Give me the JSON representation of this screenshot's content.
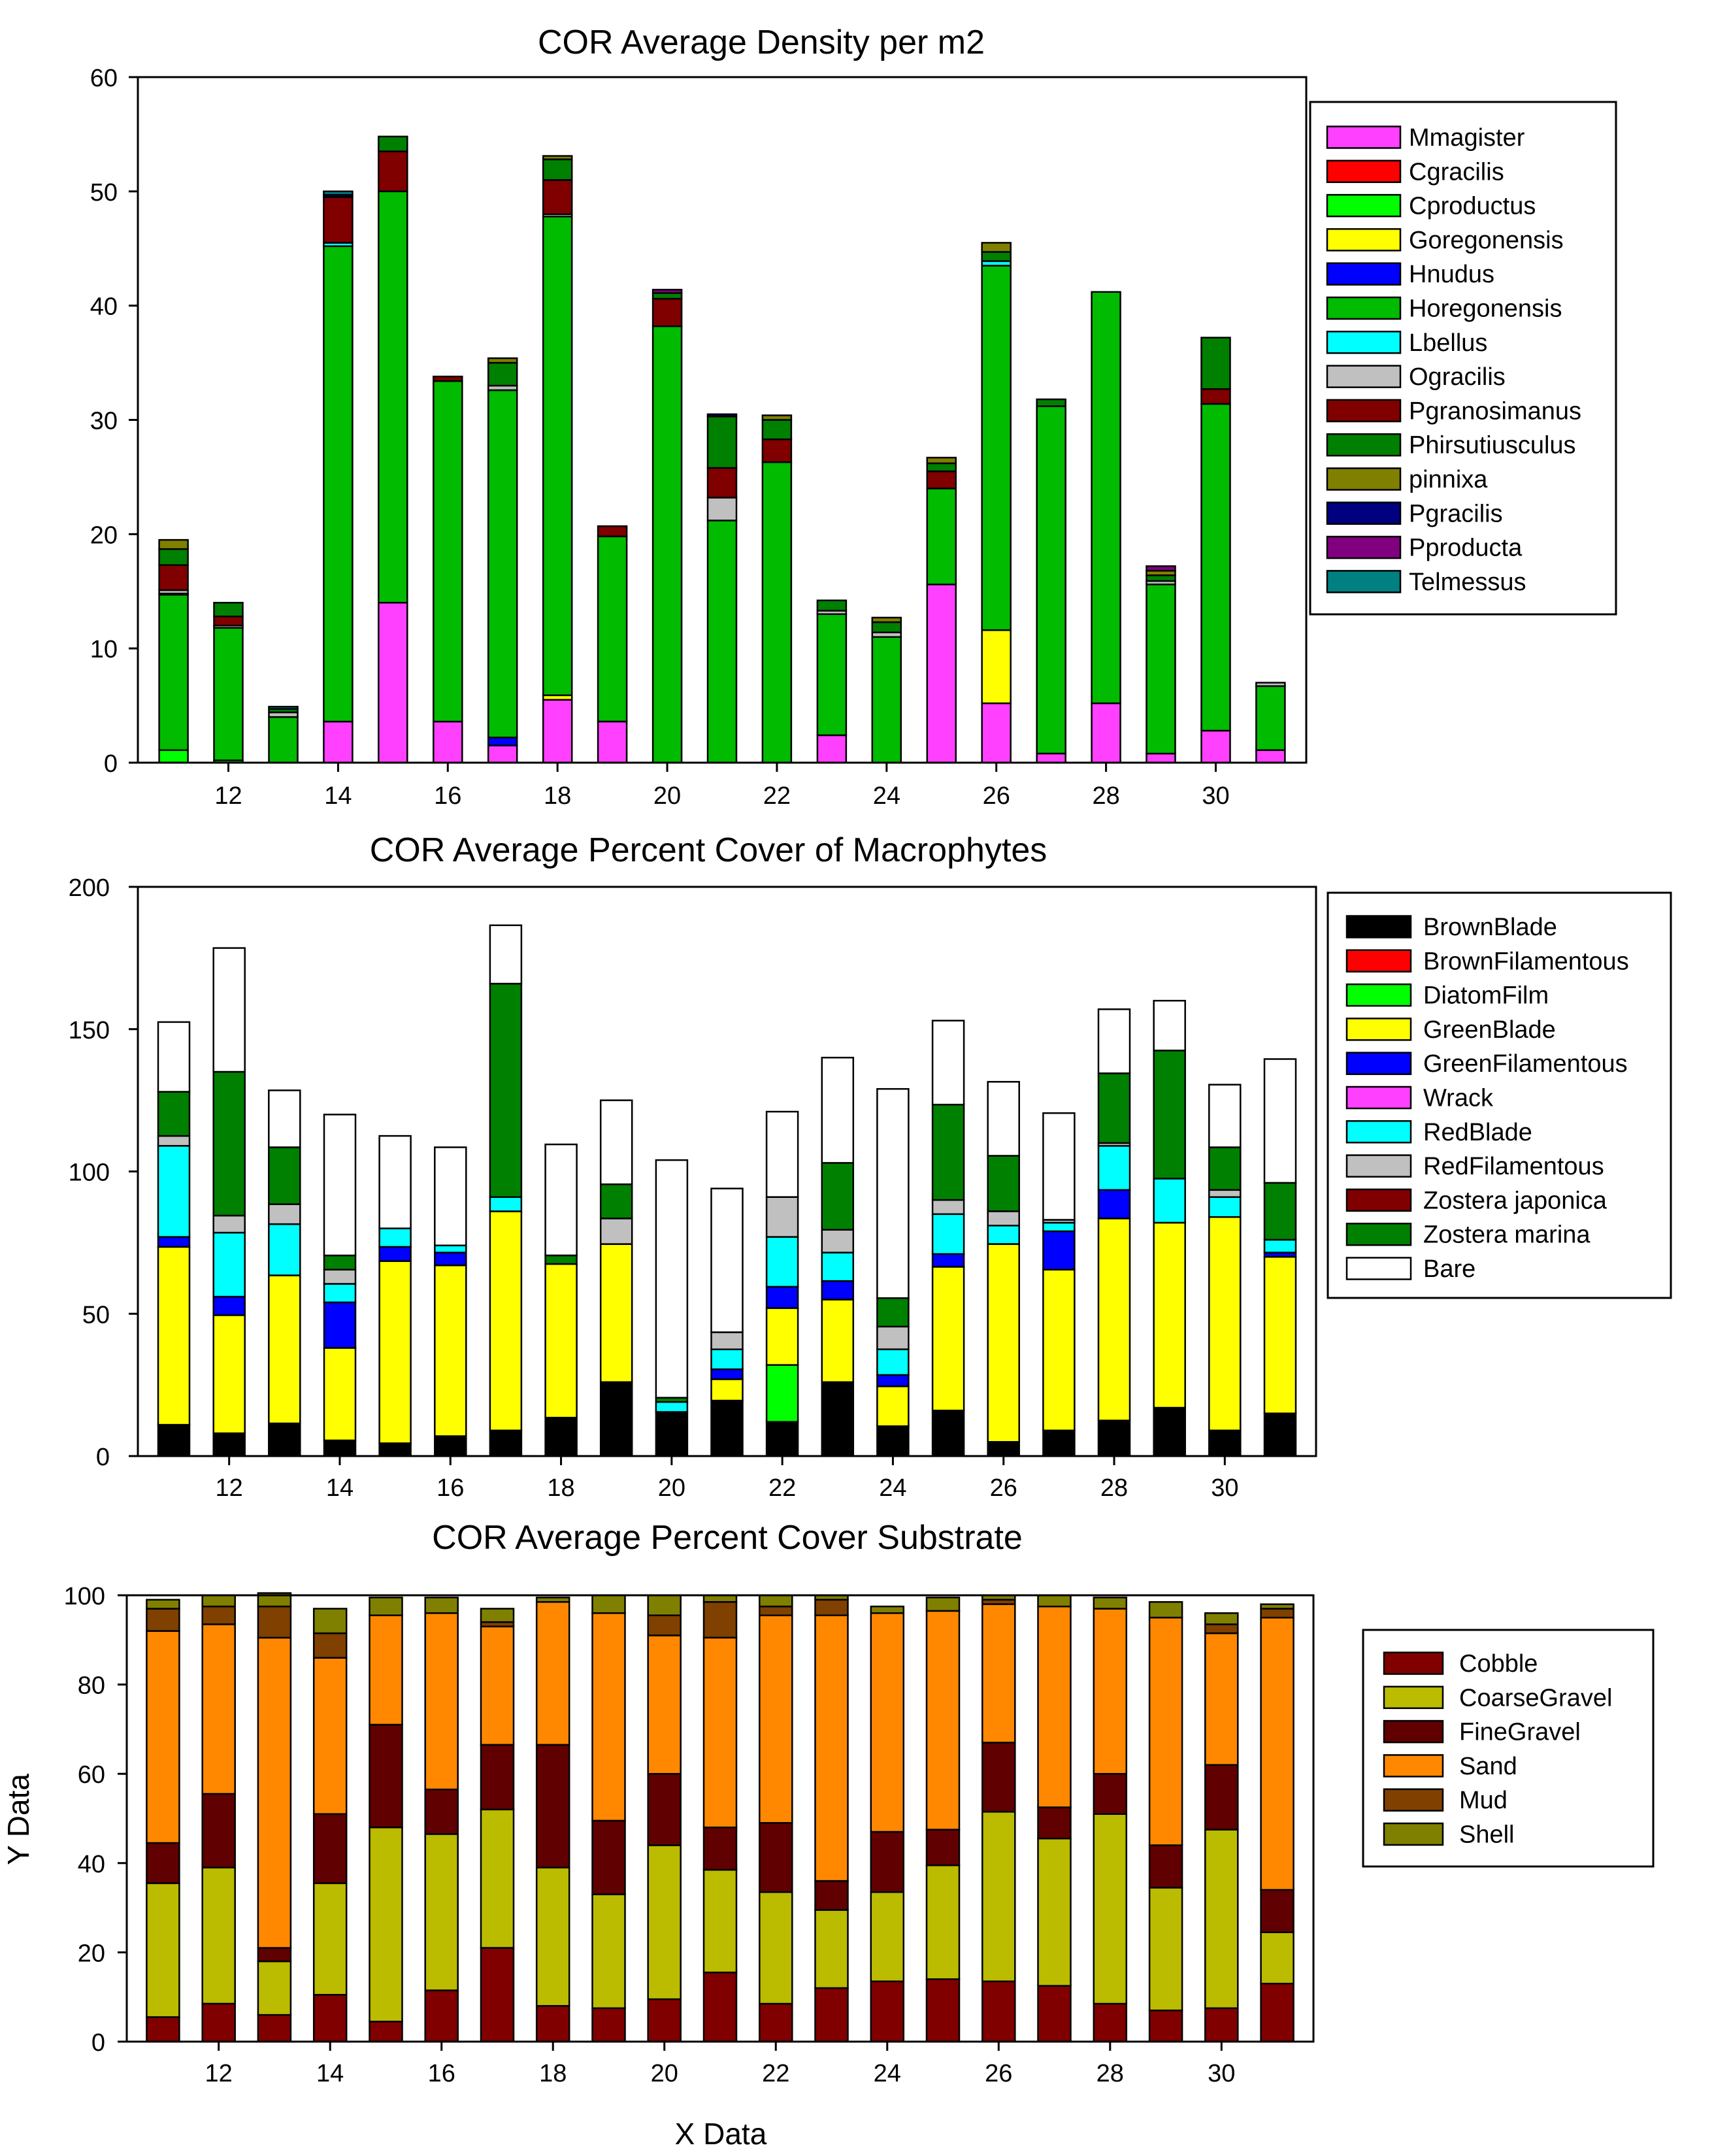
{
  "chart_data": [
    {
      "type": "bar",
      "stacked": true,
      "title": "COR Average Density per m2",
      "xlabel": "",
      "ylabel": "",
      "x": [
        11,
        12,
        13,
        14,
        15,
        16,
        17,
        18,
        19,
        20,
        21,
        22,
        23,
        24,
        25,
        26,
        27,
        28,
        29,
        30,
        31
      ],
      "xticks": [
        12,
        14,
        16,
        18,
        20,
        22,
        24,
        26,
        28,
        30
      ],
      "xlim": [
        10.35,
        31.65
      ],
      "ylim": [
        0,
        60
      ],
      "yticks": [
        0,
        10,
        20,
        30,
        40,
        50,
        60
      ],
      "legend_position": "right",
      "series": [
        {
          "name": "Mmagister",
          "color": "#FF40FF",
          "values": [
            0,
            0,
            0,
            3.6,
            14,
            3.6,
            1.5,
            5.5,
            3.6,
            0,
            0,
            0,
            2.4,
            0,
            15.6,
            5.2,
            0.8,
            5.2,
            0.8,
            2.8,
            1.1
          ]
        },
        {
          "name": "Cgracilis",
          "color": "#FF0000",
          "values": [
            0,
            0,
            0,
            0,
            0,
            0,
            0,
            0,
            0,
            0,
            0,
            0,
            0,
            0,
            0,
            0,
            0,
            0,
            0,
            0,
            0
          ]
        },
        {
          "name": "Cproductus",
          "color": "#00FF00",
          "values": [
            1.1,
            0.2,
            0,
            0,
            0,
            0,
            0,
            0,
            0,
            0,
            0,
            0,
            0,
            0,
            0,
            0,
            0,
            0,
            0,
            0,
            0
          ]
        },
        {
          "name": "Goregonensis",
          "color": "#FFFF00",
          "values": [
            0,
            0,
            0,
            0,
            0,
            0,
            0,
            0.4,
            0,
            0,
            0,
            0,
            0,
            0,
            0,
            6.4,
            0,
            0,
            0,
            0,
            0
          ]
        },
        {
          "name": "Hnudus",
          "color": "#0000FF",
          "values": [
            0,
            0,
            0,
            0,
            0,
            0,
            0.7,
            0,
            0,
            0,
            0,
            0,
            0,
            0,
            0,
            0,
            0,
            0,
            0,
            0,
            0
          ]
        },
        {
          "name": "Horegonensis",
          "color": "#00BB00",
          "values": [
            13.6,
            11.6,
            4,
            41.6,
            36,
            29.8,
            30.4,
            41.9,
            16.2,
            38.2,
            21.2,
            26.3,
            10.6,
            11,
            8.4,
            31.9,
            30.4,
            36,
            14.8,
            28.6,
            5.6
          ]
        },
        {
          "name": "Lbellus",
          "color": "#00FFFF",
          "values": [
            0.1,
            0,
            0,
            0.3,
            0,
            0,
            0,
            0,
            0,
            0,
            0,
            0,
            0,
            0,
            0,
            0.4,
            0,
            0,
            0,
            0,
            0
          ]
        },
        {
          "name": "Ogracilis",
          "color": "#C0C0C0",
          "values": [
            0.3,
            0.2,
            0.4,
            0,
            0,
            0,
            0.4,
            0.2,
            0,
            0,
            2,
            0,
            0.3,
            0.4,
            0,
            0,
            0,
            0,
            0.3,
            0,
            0.3
          ]
        },
        {
          "name": "Pgranosimanus",
          "color": "#800000",
          "values": [
            2.2,
            0.8,
            0,
            4,
            3.5,
            0.4,
            0,
            3,
            0.9,
            2.4,
            2.6,
            2,
            0,
            0,
            1.5,
            0,
            0,
            0,
            0,
            1.3,
            0
          ]
        },
        {
          "name": "Phirsutiusculus",
          "color": "#008000",
          "values": [
            1.4,
            1.2,
            0.3,
            0,
            1.3,
            0,
            2,
            1.8,
            0,
            0.5,
            4.5,
            1.7,
            0.9,
            0.9,
            0.7,
            0.8,
            0.6,
            0,
            0.5,
            4.5,
            0
          ]
        },
        {
          "name": "pinnixa",
          "color": "#808000",
          "values": [
            0.8,
            0,
            0,
            0,
            0,
            0,
            0.4,
            0.3,
            0,
            0,
            0,
            0.4,
            0,
            0.4,
            0.5,
            0.8,
            0,
            0,
            0.4,
            0,
            0
          ]
        },
        {
          "name": "Pgracilis",
          "color": "#000080",
          "values": [
            0,
            0,
            0,
            0.2,
            0,
            0,
            0,
            0,
            0,
            0,
            0.2,
            0,
            0,
            0,
            0,
            0,
            0,
            0,
            0,
            0,
            0
          ]
        },
        {
          "name": "Pproducta",
          "color": "#800080",
          "values": [
            0,
            0,
            0,
            0,
            0,
            0,
            0,
            0,
            0,
            0.3,
            0,
            0,
            0,
            0,
            0,
            0,
            0,
            0,
            0.4,
            0,
            0
          ]
        },
        {
          "name": "Telmessus",
          "color": "#008080",
          "values": [
            0,
            0,
            0.2,
            0.3,
            0,
            0,
            0,
            0,
            0,
            0,
            0,
            0,
            0,
            0,
            0,
            0,
            0,
            0,
            0,
            0,
            0
          ]
        }
      ]
    },
    {
      "type": "bar",
      "stacked": true,
      "title": "COR Average Percent Cover of Macrophytes",
      "xlabel": "",
      "ylabel": "",
      "x": [
        11,
        12,
        13,
        14,
        15,
        16,
        17,
        18,
        19,
        20,
        21,
        22,
        23,
        24,
        25,
        26,
        27,
        28,
        29,
        30,
        31
      ],
      "xticks": [
        12,
        14,
        16,
        18,
        20,
        22,
        24,
        26,
        28,
        30
      ],
      "xlim": [
        10.35,
        31.65
      ],
      "ylim": [
        0,
        200
      ],
      "yticks": [
        0,
        50,
        100,
        150,
        200
      ],
      "legend_position": "right",
      "series": [
        {
          "name": "BrownBlade",
          "color": "#000000",
          "values": [
            11,
            8,
            11.5,
            5.5,
            4.5,
            7,
            9,
            13.5,
            26,
            15.5,
            19.5,
            12,
            26,
            10.5,
            16,
            5,
            9,
            12.5,
            17,
            9,
            15
          ]
        },
        {
          "name": "BrownFilamentous",
          "color": "#FF0000",
          "values": [
            0,
            0,
            0,
            0,
            0,
            0,
            0,
            0,
            0,
            0,
            0,
            0,
            0,
            0,
            0,
            0,
            0,
            0,
            0,
            0,
            0
          ]
        },
        {
          "name": "DiatomFilm",
          "color": "#00FF00",
          "values": [
            0,
            0,
            0,
            0,
            0,
            0,
            0,
            0,
            0,
            0,
            0,
            20,
            0,
            0,
            0,
            0,
            0,
            0,
            0,
            0,
            0
          ]
        },
        {
          "name": "GreenBlade",
          "color": "#FFFF00",
          "values": [
            62.5,
            41.5,
            52,
            32.5,
            64,
            60,
            77,
            54,
            48.5,
            0,
            7.5,
            20,
            29,
            14,
            50.5,
            69.5,
            56.5,
            71,
            65,
            75,
            55
          ]
        },
        {
          "name": "GreenFilamentous",
          "color": "#0000FF",
          "values": [
            3.5,
            6.5,
            0,
            16,
            5,
            4.5,
            0,
            0,
            0,
            0,
            3.5,
            7.5,
            6.5,
            4,
            4.5,
            0,
            13.5,
            10,
            0,
            0,
            1.5
          ]
        },
        {
          "name": "Wrack",
          "color": "#FF40FF",
          "values": [
            0,
            0,
            0,
            0,
            0,
            0,
            0,
            0,
            0,
            0,
            0,
            0,
            0,
            0,
            0,
            0,
            0,
            0,
            0,
            0,
            0
          ]
        },
        {
          "name": "RedBlade",
          "color": "#00FFFF",
          "values": [
            32,
            22.5,
            18,
            6.5,
            6.5,
            2.5,
            5,
            0,
            0,
            3.5,
            7,
            17.5,
            10,
            9,
            14,
            6.5,
            3,
            15.5,
            15.5,
            7,
            4.5
          ]
        },
        {
          "name": "RedFilamentous",
          "color": "#C0C0C0",
          "values": [
            3.5,
            6,
            7,
            5,
            0,
            0,
            0,
            0,
            9,
            0,
            6,
            14,
            8,
            8,
            5,
            5,
            1,
            1,
            0,
            2.5,
            0
          ]
        },
        {
          "name": "Zostera japonica",
          "color": "#800000",
          "values": [
            0,
            0,
            0,
            0,
            0,
            0,
            0,
            0,
            0,
            0,
            0,
            0,
            0,
            0,
            0,
            0,
            0,
            0,
            0,
            0,
            0
          ]
        },
        {
          "name": "Zostera marina",
          "color": "#008000",
          "values": [
            15.5,
            50.5,
            20,
            5,
            0,
            0,
            75,
            3,
            12,
            1.5,
            0,
            0,
            23.5,
            10,
            33.5,
            19.5,
            0,
            24.5,
            45,
            15,
            20
          ]
        },
        {
          "name": "Bare",
          "color": "#FFFFFF",
          "values": [
            24.5,
            43.5,
            20,
            49.5,
            32.5,
            34.5,
            20.5,
            39,
            29.5,
            83.5,
            50.5,
            30,
            37,
            73.5,
            29.5,
            26,
            37.5,
            22.5,
            17.5,
            22,
            43.5
          ]
        }
      ]
    },
    {
      "type": "bar",
      "stacked": true,
      "title": "COR Average Percent Cover Substrate",
      "xlabel": "X Data",
      "ylabel": "Y Data",
      "x": [
        11,
        12,
        13,
        14,
        15,
        16,
        17,
        18,
        19,
        20,
        21,
        22,
        23,
        24,
        25,
        26,
        27,
        28,
        29,
        30,
        31
      ],
      "xticks": [
        12,
        14,
        16,
        18,
        20,
        22,
        24,
        26,
        28,
        30
      ],
      "xlim": [
        10.35,
        31.65
      ],
      "ylim": [
        0,
        100
      ],
      "yticks": [
        0,
        20,
        40,
        60,
        80,
        100
      ],
      "legend_position": "right",
      "series": [
        {
          "name": "Cobble",
          "color": "#800000",
          "values": [
            5.5,
            8.5,
            6,
            10.5,
            4.5,
            11.5,
            21,
            8,
            7.5,
            9.5,
            15.5,
            8.5,
            12,
            13.5,
            14,
            13.5,
            12.5,
            8.5,
            7,
            7.5,
            13
          ]
        },
        {
          "name": "CoarseGravel",
          "color": "#BBBB00",
          "values": [
            30,
            30.5,
            12,
            25,
            43.5,
            35,
            31,
            31,
            25.5,
            34.5,
            23,
            25,
            17.5,
            20,
            25.5,
            38,
            33,
            42.5,
            27.5,
            40,
            11.5
          ]
        },
        {
          "name": "FineGravel",
          "color": "#600000",
          "values": [
            9,
            16.5,
            3,
            15.5,
            23,
            10,
            14.5,
            27.5,
            16.5,
            16,
            9.5,
            15.5,
            6.5,
            13.5,
            8,
            15.5,
            7,
            9,
            9.5,
            14.5,
            9.5
          ]
        },
        {
          "name": "Sand",
          "color": "#FF8800",
          "values": [
            47.5,
            38,
            69.5,
            35,
            24.5,
            39.5,
            26.5,
            32,
            46.5,
            31,
            42.5,
            46.5,
            59.5,
            49,
            49,
            31,
            45,
            37,
            51,
            29.5,
            61
          ]
        },
        {
          "name": "Mud",
          "color": "#804000",
          "values": [
            5,
            4,
            7,
            5.5,
            0,
            0,
            1,
            0,
            0,
            4.5,
            8,
            2,
            3.5,
            0,
            0,
            1,
            0,
            0,
            0,
            2,
            2
          ]
        },
        {
          "name": "Shell",
          "color": "#808000",
          "values": [
            2,
            2.5,
            3,
            5.5,
            4,
            3.5,
            3,
            1,
            4,
            4.5,
            1.5,
            2.5,
            1,
            1.5,
            3,
            1,
            2.5,
            2.5,
            3.5,
            2.5,
            1
          ]
        }
      ]
    }
  ]
}
